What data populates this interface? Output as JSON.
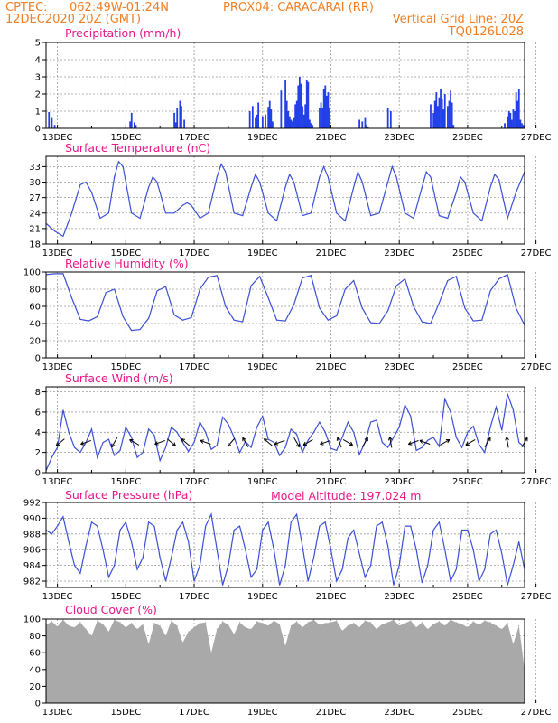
{
  "header": {
    "line1_left": "CPTEC:",
    "coords": "062:49W-01:24N",
    "station": "PROX04: CARACARAI (RR)",
    "datetime": "12DEC2020 20Z (GMT)",
    "vgrid": "Vertical Grid Line: 20Z",
    "run_code": "TQ0126L028"
  },
  "colors": {
    "line": "#3b4fd6",
    "bar": "#2340e8",
    "cloud": "#a9a9a9",
    "title": "#e8178a",
    "header": "#f07e24"
  },
  "x_axis": {
    "start_hour": 20,
    "end_hour": 356,
    "day_labels": [
      "13DEC",
      "15DEC",
      "17DEC",
      "19DEC",
      "21DEC",
      "23DEC",
      "25DEC",
      "27DEC"
    ]
  },
  "chart_data": [
    {
      "id": "precip",
      "type": "bar",
      "title": "Precipitation (mm/h)",
      "ylim": [
        0,
        5
      ],
      "yticks": [
        0,
        1,
        2,
        3,
        4,
        5
      ],
      "x": [
        22,
        24,
        26,
        79,
        80,
        82,
        83,
        110,
        111,
        112,
        114,
        115,
        117,
        163,
        165,
        167,
        168,
        169,
        172,
        174,
        176,
        177,
        178,
        179,
        185,
        188,
        189,
        190,
        191,
        192,
        193,
        194,
        195,
        196,
        197,
        198,
        199,
        200,
        201,
        202,
        203,
        204,
        205,
        206,
        207,
        212,
        213,
        214,
        215,
        216,
        217,
        218,
        219,
        240,
        242,
        244,
        245,
        246,
        260,
        262,
        290,
        292,
        293,
        294,
        295,
        296,
        297,
        298,
        299,
        300,
        302,
        303,
        304,
        305,
        306,
        342,
        344,
        345,
        346,
        347,
        348,
        349,
        350,
        351,
        352,
        353,
        354,
        355
      ],
      "values": [
        0.95,
        0.6,
        0.2,
        0.4,
        0.9,
        0.35,
        0.2,
        0.9,
        0.35,
        1.2,
        1.6,
        1.3,
        0.5,
        1.0,
        1.3,
        0.6,
        0.8,
        1.5,
        0.7,
        0.8,
        1.25,
        1.6,
        1.1,
        0.4,
        2.2,
        2.8,
        1.6,
        1.0,
        0.7,
        0.5,
        0.4,
        0.6,
        1.4,
        1.6,
        2.5,
        3.0,
        2.6,
        1.3,
        0.8,
        1.4,
        2.8,
        2.7,
        0.5,
        0.3,
        0.2,
        1.2,
        1.5,
        1.2,
        2.3,
        2.5,
        1.9,
        2.1,
        1.2,
        0.5,
        0.4,
        0.6,
        0.2,
        0.1,
        1.2,
        1.0,
        1.4,
        0.9,
        1.6,
        2.1,
        1.3,
        1.8,
        2.3,
        1.7,
        1.1,
        2.0,
        1.3,
        1.6,
        2.2,
        1.5,
        0.2,
        0.3,
        0.7,
        1.0,
        0.9,
        0.5,
        1.1,
        1.0,
        2.1,
        1.6,
        2.3,
        0.5,
        0.3,
        0.2
      ]
    },
    {
      "id": "temp",
      "type": "line",
      "title": "Surface Temperature (nC)",
      "ylim": [
        18,
        35
      ],
      "yticks": [
        18,
        21,
        24,
        27,
        30,
        33
      ],
      "x": [
        20,
        26,
        32,
        38,
        44,
        48,
        52,
        58,
        64,
        68,
        71,
        74,
        80,
        86,
        92,
        95,
        98,
        104,
        110,
        116,
        119,
        122,
        128,
        134,
        140,
        143,
        146,
        152,
        158,
        164,
        167,
        170,
        176,
        182,
        188,
        191,
        194,
        200,
        206,
        212,
        215,
        218,
        224,
        230,
        236,
        239,
        242,
        248,
        254,
        260,
        263,
        266,
        272,
        278,
        284,
        287,
        290,
        296,
        302,
        308,
        311,
        314,
        320,
        326,
        332,
        335,
        338,
        344,
        350,
        356
      ],
      "values": [
        22,
        20.5,
        19.5,
        24,
        29.5,
        30,
        28,
        23,
        24,
        31,
        34,
        33,
        24,
        23,
        29,
        31,
        30,
        24,
        24,
        25.5,
        26,
        25.5,
        23,
        24,
        31,
        33.5,
        32,
        24,
        23.5,
        29,
        31.5,
        30,
        24,
        22.5,
        29,
        31.5,
        30,
        23.5,
        24,
        31,
        33,
        31,
        24,
        22.5,
        29,
        32,
        30,
        23.5,
        24,
        30,
        33,
        31,
        24,
        23,
        29,
        32,
        31,
        23.5,
        23,
        28,
        31,
        30,
        24,
        22.5,
        29,
        31.5,
        30.5,
        23,
        28,
        32
      ]
    },
    {
      "id": "rh",
      "type": "line",
      "title": "Relative Humidity (%)",
      "ylim": [
        0,
        100
      ],
      "yticks": [
        0,
        20,
        40,
        60,
        80,
        100
      ],
      "x": [
        20,
        26,
        32,
        38,
        44,
        50,
        56,
        62,
        68,
        74,
        80,
        86,
        92,
        98,
        104,
        110,
        116,
        122,
        128,
        134,
        140,
        146,
        152,
        158,
        164,
        170,
        176,
        182,
        188,
        194,
        200,
        206,
        212,
        218,
        224,
        230,
        236,
        242,
        248,
        254,
        260,
        266,
        272,
        278,
        284,
        290,
        296,
        302,
        308,
        314,
        320,
        326,
        332,
        338,
        344,
        350,
        356
      ],
      "values": [
        97,
        98,
        98,
        70,
        45,
        43,
        48,
        76,
        80,
        48,
        32,
        33,
        46,
        78,
        83,
        50,
        44,
        47,
        80,
        94,
        96,
        60,
        44,
        42,
        84,
        95,
        70,
        44,
        43,
        62,
        93,
        96,
        58,
        44,
        49,
        80,
        90,
        58,
        41,
        40,
        55,
        84,
        92,
        60,
        42,
        40,
        64,
        90,
        95,
        58,
        43,
        44,
        78,
        92,
        97,
        58,
        38
      ],
      "grid_labels": [
        "100",
        "80",
        "60",
        "40",
        "20",
        "0"
      ]
    },
    {
      "id": "wind",
      "type": "line",
      "title": "Surface Wind (m/s)",
      "ylim": [
        0,
        8.5
      ],
      "yticks": [
        0,
        2,
        4,
        6,
        8
      ],
      "x": [
        20,
        24,
        28,
        32,
        36,
        40,
        44,
        48,
        52,
        56,
        60,
        64,
        68,
        72,
        76,
        80,
        84,
        88,
        92,
        96,
        100,
        104,
        108,
        112,
        116,
        120,
        124,
        128,
        132,
        136,
        140,
        144,
        148,
        152,
        156,
        160,
        164,
        168,
        172,
        176,
        180,
        184,
        188,
        192,
        196,
        200,
        204,
        208,
        212,
        216,
        220,
        224,
        228,
        232,
        236,
        240,
        244,
        248,
        252,
        256,
        260,
        264,
        268,
        272,
        276,
        280,
        284,
        288,
        292,
        296,
        300,
        304,
        308,
        312,
        316,
        320,
        324,
        328,
        332,
        336,
        340,
        344,
        348,
        352,
        356
      ],
      "values": [
        0.2,
        1.5,
        2.5,
        6.2,
        4,
        2.5,
        2,
        3,
        4.3,
        1.5,
        3,
        3.3,
        1.7,
        2.2,
        4.5,
        3.5,
        1.5,
        2,
        4.3,
        3.7,
        1.2,
        2.5,
        4.5,
        4,
        3,
        2.1,
        3,
        5,
        4,
        2.3,
        2.7,
        5.5,
        4.8,
        3.5,
        2,
        3.1,
        2.5,
        4.5,
        5.6,
        3.3,
        3,
        1.7,
        2.5,
        4.3,
        3.8,
        2,
        3.2,
        4,
        5,
        4,
        2.4,
        2.2,
        3.5,
        5,
        4,
        1.8,
        3,
        5,
        5.2,
        3,
        2.5,
        3.5,
        4.5,
        6.7,
        5.6,
        2.2,
        2.5,
        3.2,
        3.5,
        2.6,
        7.3,
        6,
        3.5,
        2.5,
        4,
        4.6,
        2.8,
        2,
        4.5,
        6.5,
        4.2,
        7.8,
        6.2,
        3,
        2.5
      ],
      "arrows": [
        {
          "x": 30,
          "dir": 220
        },
        {
          "x": 48,
          "dir": 200
        },
        {
          "x": 68,
          "dir": 240
        },
        {
          "x": 82,
          "dir": 150
        },
        {
          "x": 100,
          "dir": 200
        },
        {
          "x": 108,
          "dir": 320
        },
        {
          "x": 118,
          "dir": 140
        },
        {
          "x": 132,
          "dir": 160
        },
        {
          "x": 150,
          "dir": 230
        },
        {
          "x": 160,
          "dir": 120
        },
        {
          "x": 176,
          "dir": 140
        },
        {
          "x": 184,
          "dir": 200
        },
        {
          "x": 196,
          "dir": 300
        },
        {
          "x": 204,
          "dir": 210
        },
        {
          "x": 216,
          "dir": 200
        },
        {
          "x": 226,
          "dir": 110
        },
        {
          "x": 232,
          "dir": 330
        },
        {
          "x": 244,
          "dir": 60
        },
        {
          "x": 262,
          "dir": 100
        },
        {
          "x": 278,
          "dir": 200
        },
        {
          "x": 286,
          "dir": 160
        },
        {
          "x": 300,
          "dir": 30
        },
        {
          "x": 318,
          "dir": 210
        },
        {
          "x": 330,
          "dir": 60
        },
        {
          "x": 344,
          "dir": 100
        },
        {
          "x": 356,
          "dir": 60
        }
      ]
    },
    {
      "id": "pres",
      "type": "line",
      "title": "Surface Pressure (hPa)",
      "ylim": [
        981.2,
        992
      ],
      "yticks": [
        982,
        984,
        986,
        988,
        990,
        992
      ],
      "x": [
        20,
        24,
        28,
        32,
        36,
        40,
        44,
        48,
        52,
        56,
        60,
        64,
        68,
        72,
        76,
        80,
        84,
        88,
        92,
        96,
        100,
        104,
        108,
        112,
        116,
        120,
        124,
        128,
        132,
        136,
        140,
        144,
        148,
        152,
        156,
        160,
        164,
        168,
        172,
        176,
        180,
        184,
        188,
        192,
        196,
        200,
        204,
        208,
        212,
        216,
        220,
        224,
        228,
        232,
        236,
        240,
        244,
        248,
        252,
        256,
        260,
        264,
        268,
        272,
        276,
        280,
        284,
        288,
        292,
        296,
        300,
        304,
        308,
        312,
        316,
        320,
        324,
        328,
        332,
        336,
        340,
        344,
        348,
        352,
        356
      ],
      "values": [
        988.5,
        988,
        989,
        990.2,
        987,
        984,
        983,
        986.5,
        989.5,
        989,
        986,
        982.5,
        984,
        988.5,
        989.5,
        987,
        983.5,
        985,
        989.5,
        989,
        985,
        982,
        985,
        988.5,
        989.5,
        987,
        982,
        984,
        989,
        990.5,
        986,
        981.5,
        984,
        988.5,
        989,
        986,
        982.5,
        983.5,
        988.5,
        989.5,
        986,
        981.5,
        984,
        989.5,
        990.5,
        986.5,
        982,
        985,
        989,
        989.5,
        986,
        982,
        983.5,
        987.5,
        988.5,
        985.5,
        982.5,
        984,
        989,
        989.5,
        986.5,
        981.5,
        984,
        989,
        989,
        986,
        981.8,
        984,
        988.5,
        989.5,
        986,
        982,
        983.5,
        988.5,
        988.5,
        986,
        982,
        983.5,
        988,
        988.5,
        985.5,
        981.5,
        984,
        987,
        983.5
      ]
    },
    {
      "id": "cloud",
      "type": "area",
      "title": "Cloud Cover (%)",
      "ylim": [
        0,
        100
      ],
      "yticks": [
        0,
        20,
        40,
        60,
        80,
        100
      ],
      "x": [
        20,
        24,
        28,
        32,
        36,
        40,
        44,
        48,
        52,
        56,
        60,
        64,
        68,
        72,
        76,
        80,
        84,
        88,
        92,
        96,
        100,
        104,
        108,
        112,
        116,
        120,
        124,
        128,
        132,
        136,
        140,
        144,
        148,
        152,
        156,
        160,
        164,
        168,
        172,
        176,
        180,
        184,
        188,
        192,
        196,
        200,
        204,
        208,
        212,
        216,
        220,
        224,
        228,
        232,
        236,
        240,
        244,
        248,
        252,
        256,
        260,
        264,
        268,
        272,
        276,
        280,
        284,
        288,
        292,
        296,
        300,
        304,
        308,
        312,
        316,
        320,
        324,
        328,
        332,
        336,
        340,
        344,
        348,
        352,
        356
      ],
      "values": [
        93,
        97,
        91,
        99,
        92,
        90,
        96,
        88,
        80,
        98,
        94,
        85,
        99,
        96,
        90,
        95,
        88,
        94,
        70,
        95,
        92,
        80,
        98,
        92,
        72,
        85,
        90,
        95,
        96,
        60,
        88,
        97,
        93,
        82,
        96,
        90,
        88,
        97,
        95,
        92,
        98,
        94,
        68,
        92,
        97,
        90,
        96,
        99,
        93,
        95,
        96,
        98,
        86,
        92,
        95,
        90,
        98,
        96,
        88,
        94,
        96,
        99,
        92,
        95,
        98,
        90,
        96,
        88,
        94,
        97,
        92,
        99,
        96,
        94,
        90,
        97,
        93,
        98,
        96,
        92,
        88,
        95,
        70,
        92,
        40
      ]
    }
  ],
  "annotations": {
    "model_altitude": "Model Altitude: 197.024 m"
  }
}
